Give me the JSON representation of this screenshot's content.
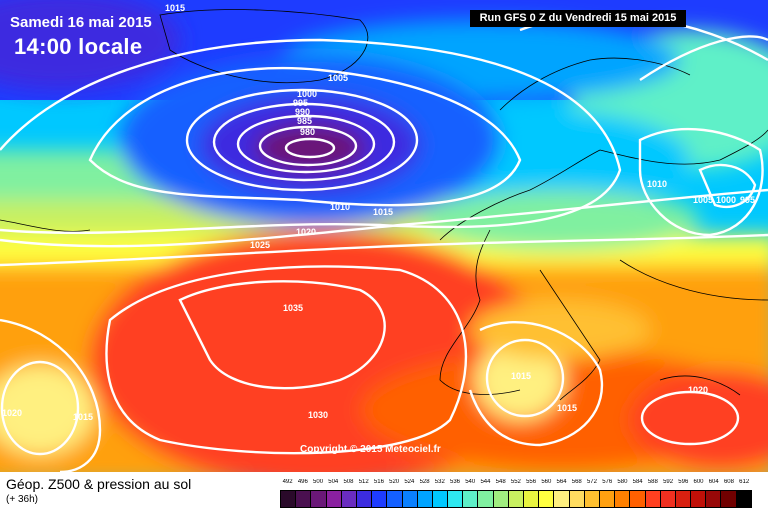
{
  "header": {
    "date": "Samedi 16 mai 2015",
    "time": "14:00 locale",
    "run": "Run GFS 0 Z du Vendredi 15 mai 2015",
    "copyright": "Copyright © 2015 Meteociel.fr"
  },
  "legend": {
    "title": "Géop. Z500 & pression au sol",
    "subtitle": "(+ 36h)",
    "scale_values": [
      "492",
      "496",
      "500",
      "504",
      "508",
      "512",
      "516",
      "520",
      "524",
      "528",
      "532",
      "536",
      "540",
      "544",
      "548",
      "552",
      "556",
      "560",
      "564",
      "568",
      "572",
      "576",
      "580",
      "584",
      "588",
      "592",
      "596",
      "600",
      "604",
      "608",
      "612"
    ],
    "scale_colors": [
      "#2a0a2a",
      "#4a1050",
      "#6a1878",
      "#8a20a0",
      "#6a2cc0",
      "#3c2ce0",
      "#1e3cff",
      "#1460ff",
      "#0a80ff",
      "#00a4ff",
      "#00c8ff",
      "#2ee8f0",
      "#5ef0c8",
      "#80f0a0",
      "#a0ee80",
      "#c8f060",
      "#e8f440",
      "#ffff40",
      "#fff080",
      "#ffdc60",
      "#ffc030",
      "#ffa010",
      "#ff8000",
      "#ff6000",
      "#ff4020",
      "#f03020",
      "#d82010",
      "#c01008",
      "#980808",
      "#700000",
      "#000000"
    ]
  },
  "isobars": {
    "labels": [
      "1015",
      "1005",
      "1000",
      "995",
      "990",
      "985",
      "980",
      "1010",
      "1015",
      "1020",
      "1025",
      "1035",
      "1030",
      "1020",
      "1015",
      "1015",
      "1015",
      "1010",
      "1005",
      "1000",
      "995",
      "1020"
    ]
  }
}
